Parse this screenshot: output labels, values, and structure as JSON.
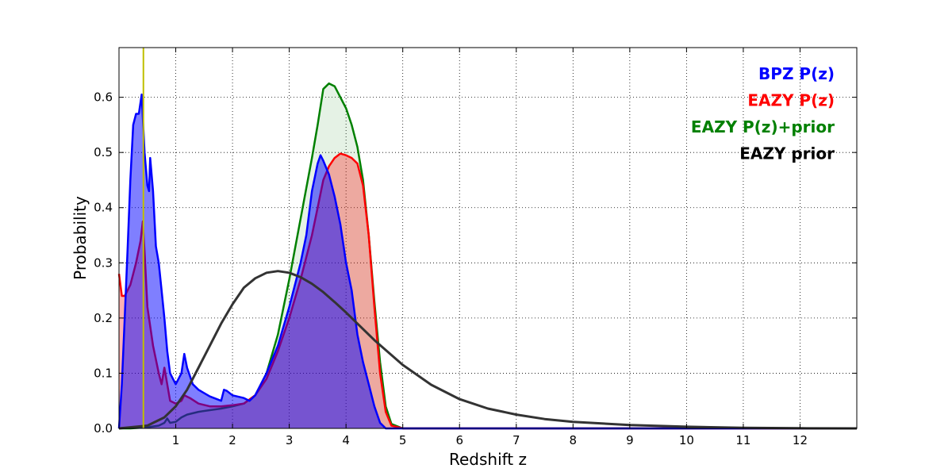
{
  "chart_data": {
    "type": "area",
    "xlabel": "Redshift z",
    "ylabel": "Probability",
    "xlim": [
      0,
      13
    ],
    "ylim": [
      0,
      0.69
    ],
    "xticks": [
      1,
      2,
      3,
      4,
      5,
      6,
      7,
      8,
      9,
      10,
      11,
      12
    ],
    "xtick_labels": [
      "1",
      "2",
      "3",
      "4",
      "5",
      "6",
      "7",
      "8",
      "9",
      "10",
      "11",
      "12"
    ],
    "yticks": [
      0.0,
      0.1,
      0.2,
      0.3,
      0.4,
      0.5,
      0.6
    ],
    "ytick_labels": [
      "0.0",
      "0.1",
      "0.2",
      "0.3",
      "0.4",
      "0.5",
      "0.6"
    ],
    "grid": true,
    "legend_position": "top-right",
    "vline": {
      "x": 0.43,
      "color": "#bfbf00"
    },
    "series": [
      {
        "name": "EAZY P(z)+prior",
        "color": "#008000",
        "fill": "#008000",
        "fill_opacity": 0.1,
        "points": [
          [
            0,
            0
          ],
          [
            0.2,
            0
          ],
          [
            0.5,
            0.002
          ],
          [
            0.7,
            0.005
          ],
          [
            0.8,
            0.01
          ],
          [
            0.85,
            0.018
          ],
          [
            0.9,
            0.01
          ],
          [
            1.0,
            0.012
          ],
          [
            1.1,
            0.02
          ],
          [
            1.2,
            0.025
          ],
          [
            1.4,
            0.03
          ],
          [
            1.6,
            0.033
          ],
          [
            1.8,
            0.036
          ],
          [
            2.0,
            0.04
          ],
          [
            2.2,
            0.045
          ],
          [
            2.4,
            0.06
          ],
          [
            2.6,
            0.1
          ],
          [
            2.8,
            0.17
          ],
          [
            3.0,
            0.27
          ],
          [
            3.2,
            0.38
          ],
          [
            3.4,
            0.49
          ],
          [
            3.5,
            0.55
          ],
          [
            3.6,
            0.615
          ],
          [
            3.7,
            0.625
          ],
          [
            3.8,
            0.62
          ],
          [
            3.9,
            0.6
          ],
          [
            4.0,
            0.58
          ],
          [
            4.1,
            0.55
          ],
          [
            4.2,
            0.51
          ],
          [
            4.3,
            0.45
          ],
          [
            4.4,
            0.35
          ],
          [
            4.5,
            0.23
          ],
          [
            4.6,
            0.12
          ],
          [
            4.7,
            0.04
          ],
          [
            4.8,
            0.008
          ],
          [
            5.0,
            0
          ],
          [
            12,
            0
          ],
          [
            13,
            0
          ]
        ]
      },
      {
        "name": "EAZY P(z)",
        "color": "#ff0000",
        "fill": "#ff0000",
        "fill_opacity": 0.3,
        "points": [
          [
            0,
            0.28
          ],
          [
            0.05,
            0.24
          ],
          [
            0.1,
            0.24
          ],
          [
            0.2,
            0.26
          ],
          [
            0.3,
            0.3
          ],
          [
            0.38,
            0.34
          ],
          [
            0.42,
            0.375
          ],
          [
            0.45,
            0.32
          ],
          [
            0.5,
            0.22
          ],
          [
            0.6,
            0.15
          ],
          [
            0.7,
            0.1
          ],
          [
            0.75,
            0.08
          ],
          [
            0.8,
            0.11
          ],
          [
            0.85,
            0.08
          ],
          [
            0.9,
            0.05
          ],
          [
            1.0,
            0.045
          ],
          [
            1.1,
            0.05
          ],
          [
            1.15,
            0.06
          ],
          [
            1.25,
            0.055
          ],
          [
            1.4,
            0.045
          ],
          [
            1.6,
            0.04
          ],
          [
            1.8,
            0.04
          ],
          [
            2.0,
            0.042
          ],
          [
            2.2,
            0.045
          ],
          [
            2.4,
            0.06
          ],
          [
            2.6,
            0.09
          ],
          [
            2.8,
            0.14
          ],
          [
            3.0,
            0.2
          ],
          [
            3.2,
            0.27
          ],
          [
            3.4,
            0.35
          ],
          [
            3.5,
            0.4
          ],
          [
            3.6,
            0.45
          ],
          [
            3.7,
            0.475
          ],
          [
            3.8,
            0.49
          ],
          [
            3.9,
            0.498
          ],
          [
            4.0,
            0.495
          ],
          [
            4.1,
            0.49
          ],
          [
            4.2,
            0.48
          ],
          [
            4.3,
            0.44
          ],
          [
            4.4,
            0.35
          ],
          [
            4.5,
            0.22
          ],
          [
            4.6,
            0.1
          ],
          [
            4.7,
            0.03
          ],
          [
            4.8,
            0.005
          ],
          [
            5.0,
            0
          ],
          [
            12,
            0
          ],
          [
            13,
            0
          ]
        ]
      },
      {
        "name": "BPZ P(z)",
        "color": "#0000ff",
        "fill": "#0000ff",
        "fill_opacity": 0.5,
        "points": [
          [
            0,
            0
          ],
          [
            0.05,
            0.08
          ],
          [
            0.1,
            0.2
          ],
          [
            0.15,
            0.32
          ],
          [
            0.2,
            0.45
          ],
          [
            0.25,
            0.55
          ],
          [
            0.3,
            0.57
          ],
          [
            0.35,
            0.57
          ],
          [
            0.4,
            0.605
          ],
          [
            0.45,
            0.5
          ],
          [
            0.5,
            0.44
          ],
          [
            0.53,
            0.43
          ],
          [
            0.55,
            0.49
          ],
          [
            0.6,
            0.43
          ],
          [
            0.65,
            0.33
          ],
          [
            0.7,
            0.3
          ],
          [
            0.75,
            0.25
          ],
          [
            0.8,
            0.2
          ],
          [
            0.85,
            0.14
          ],
          [
            0.9,
            0.1
          ],
          [
            1.0,
            0.08
          ],
          [
            1.05,
            0.09
          ],
          [
            1.1,
            0.1
          ],
          [
            1.15,
            0.135
          ],
          [
            1.2,
            0.11
          ],
          [
            1.3,
            0.08
          ],
          [
            1.4,
            0.07
          ],
          [
            1.6,
            0.058
          ],
          [
            1.8,
            0.05
          ],
          [
            1.85,
            0.07
          ],
          [
            1.9,
            0.068
          ],
          [
            2.0,
            0.06
          ],
          [
            2.2,
            0.055
          ],
          [
            2.3,
            0.05
          ],
          [
            2.4,
            0.06
          ],
          [
            2.6,
            0.1
          ],
          [
            2.8,
            0.15
          ],
          [
            3.0,
            0.22
          ],
          [
            3.2,
            0.3
          ],
          [
            3.3,
            0.35
          ],
          [
            3.4,
            0.43
          ],
          [
            3.5,
            0.48
          ],
          [
            3.55,
            0.495
          ],
          [
            3.6,
            0.485
          ],
          [
            3.7,
            0.46
          ],
          [
            3.8,
            0.42
          ],
          [
            3.9,
            0.37
          ],
          [
            4.0,
            0.3
          ],
          [
            4.1,
            0.25
          ],
          [
            4.2,
            0.17
          ],
          [
            4.3,
            0.12
          ],
          [
            4.4,
            0.08
          ],
          [
            4.5,
            0.04
          ],
          [
            4.6,
            0.01
          ],
          [
            4.7,
            0
          ],
          [
            12,
            0
          ],
          [
            13,
            0
          ]
        ]
      },
      {
        "name": "EAZY prior",
        "color": "#333333",
        "fill": null,
        "points": [
          [
            0,
            0
          ],
          [
            0.5,
            0.005
          ],
          [
            0.8,
            0.02
          ],
          [
            1.0,
            0.04
          ],
          [
            1.2,
            0.07
          ],
          [
            1.4,
            0.11
          ],
          [
            1.6,
            0.15
          ],
          [
            1.8,
            0.19
          ],
          [
            2.0,
            0.225
          ],
          [
            2.2,
            0.255
          ],
          [
            2.4,
            0.272
          ],
          [
            2.6,
            0.282
          ],
          [
            2.8,
            0.285
          ],
          [
            3.0,
            0.282
          ],
          [
            3.2,
            0.274
          ],
          [
            3.4,
            0.262
          ],
          [
            3.6,
            0.247
          ],
          [
            3.8,
            0.229
          ],
          [
            4.0,
            0.21
          ],
          [
            4.5,
            0.16
          ],
          [
            5.0,
            0.115
          ],
          [
            5.5,
            0.079
          ],
          [
            6.0,
            0.053
          ],
          [
            6.5,
            0.036
          ],
          [
            7.0,
            0.025
          ],
          [
            7.5,
            0.017
          ],
          [
            8.0,
            0.012
          ],
          [
            9.0,
            0.006
          ],
          [
            10.0,
            0.003
          ],
          [
            11.0,
            0.001
          ],
          [
            12.0,
            0.0003
          ],
          [
            13.0,
            0
          ]
        ]
      }
    ],
    "legend": [
      {
        "label": "BPZ P(z)",
        "color": "#0000ff"
      },
      {
        "label": "EAZY P(z)",
        "color": "#ff0000"
      },
      {
        "label": "EAZY P(z)+prior",
        "color": "#008000"
      },
      {
        "label": "EAZY prior",
        "color": "#000000"
      }
    ]
  }
}
